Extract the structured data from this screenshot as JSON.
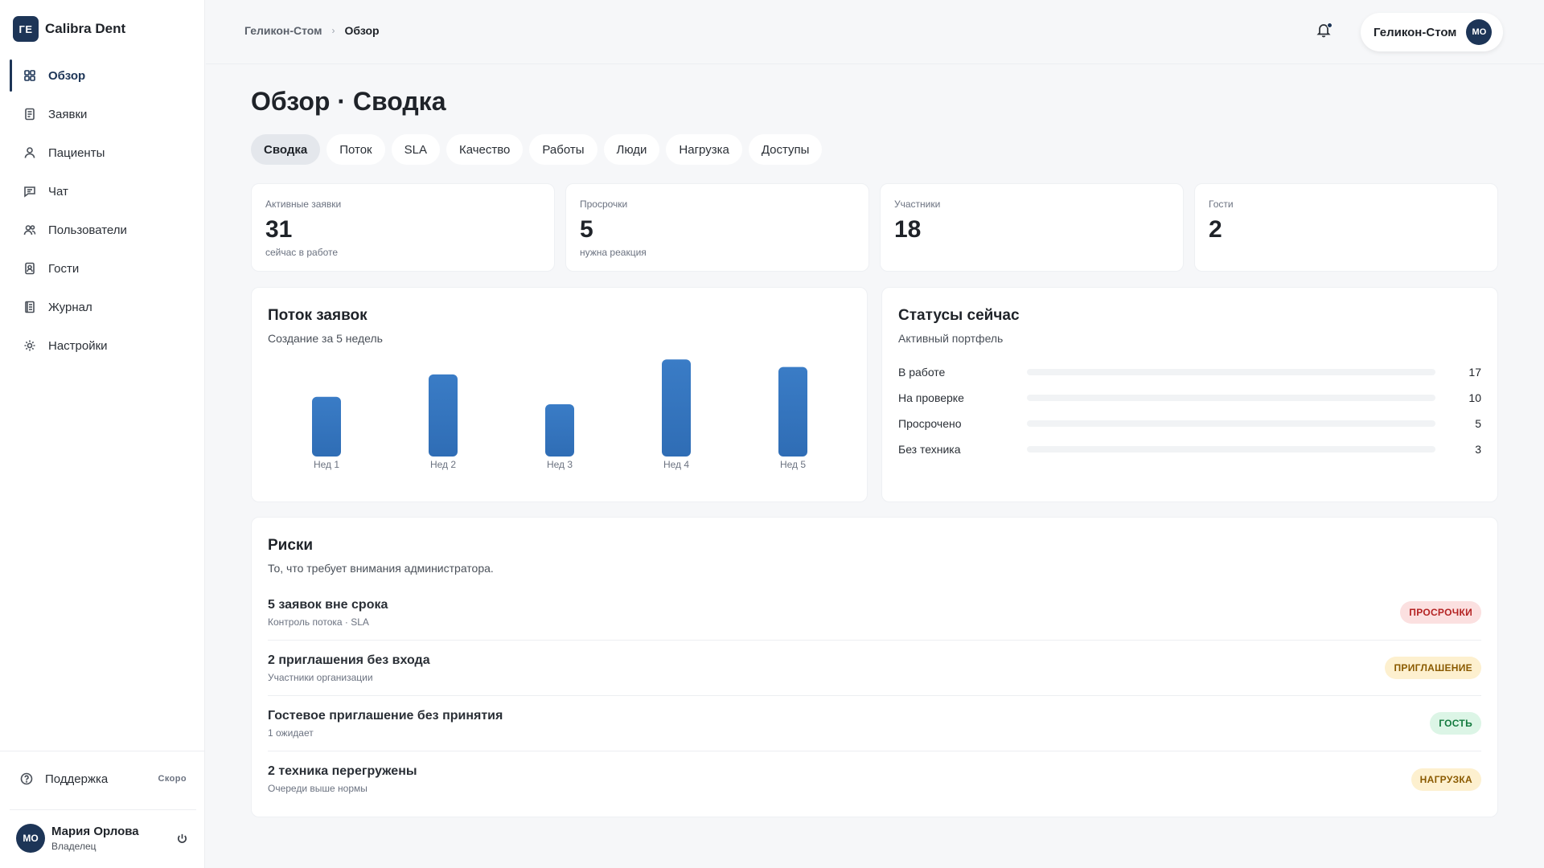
{
  "brand": {
    "initials": "ГЕ",
    "name": "Calibra Dent"
  },
  "sidebar": {
    "items": [
      {
        "label": "Обзор",
        "icon": "grid-icon",
        "active": true
      },
      {
        "label": "Заявки",
        "icon": "document-icon"
      },
      {
        "label": "Пациенты",
        "icon": "user-icon"
      },
      {
        "label": "Чат",
        "icon": "chat-icon"
      },
      {
        "label": "Пользователи",
        "icon": "users-icon"
      },
      {
        "label": "Гости",
        "icon": "guest-badge-icon"
      },
      {
        "label": "Журнал",
        "icon": "journal-icon"
      },
      {
        "label": "Настройки",
        "icon": "gear-icon"
      }
    ],
    "support_label": "Поддержка",
    "support_badge": "Скоро",
    "user": {
      "initials": "МО",
      "name": "Мария Орлова",
      "role": "Владелец"
    }
  },
  "topbar": {
    "breadcrumb": [
      "Геликон-Стом",
      "Обзор"
    ],
    "org_name": "Геликон-Стом",
    "org_initials": "МО"
  },
  "page": {
    "title": "Обзор · Сводка",
    "tabs": [
      "Сводка",
      "Поток",
      "SLA",
      "Качество",
      "Работы",
      "Люди",
      "Нагрузка",
      "Доступы"
    ],
    "active_tab": "Сводка"
  },
  "stats": [
    {
      "label": "Активные заявки",
      "value": "31",
      "sub": "сейчас в работе"
    },
    {
      "label": "Просрочки",
      "value": "5",
      "sub": "нужна реакция"
    },
    {
      "label": "Участники",
      "value": "18",
      "sub": ""
    },
    {
      "label": "Гости",
      "value": "2",
      "sub": ""
    }
  ],
  "flow": {
    "title": "Поток заявок",
    "subtitle": "Создание за 5 недель"
  },
  "chart_data": {
    "type": "bar",
    "categories": [
      "Нед 1",
      "Нед 2",
      "Нед 3",
      "Нед 4",
      "Нед 5"
    ],
    "values": [
      8,
      11,
      7,
      13,
      12
    ],
    "ylim": [
      0,
      14
    ],
    "color": "#2f6db5",
    "grid": false,
    "title": "",
    "xlabel": "",
    "ylabel": ""
  },
  "statuses": {
    "title": "Статусы сейчас",
    "subtitle": "Активный портфель",
    "rows": [
      {
        "label": "В работе",
        "count": "17",
        "share": 0.0
      },
      {
        "label": "На проверке",
        "count": "10",
        "share": 0.0
      },
      {
        "label": "Просрочено",
        "count": "5",
        "share": 0.0
      },
      {
        "label": "Без техника",
        "count": "3",
        "share": 0.0
      }
    ]
  },
  "risks": {
    "title": "Риски",
    "subtitle": "То, что требует внимания администратора.",
    "items": [
      {
        "title": "5 заявок вне срока",
        "meta": "Контроль потока · SLA",
        "badge": "ПРОСРОЧКИ",
        "badge_bg": "#fbe0e0",
        "badge_fg": "#b42323"
      },
      {
        "title": "2 приглашения без входа",
        "meta": "Участники организации",
        "badge": "ПРИГЛАШЕНИЕ",
        "badge_bg": "#fdf0cf",
        "badge_fg": "#8a5a00"
      },
      {
        "title": "Гостевое приглашение без принятия",
        "meta": "1 ожидает",
        "badge": "ГОСТЬ",
        "badge_bg": "#dcf5e6",
        "badge_fg": "#137a3e"
      },
      {
        "title": "2 техника перегружены",
        "meta": "Очереди выше нормы",
        "badge": "НАГРУЗКА",
        "badge_bg": "#fdf0cf",
        "badge_fg": "#8a5a00"
      }
    ]
  },
  "colors": {
    "accent": "#1d3557",
    "bar": "#2f6db5"
  }
}
